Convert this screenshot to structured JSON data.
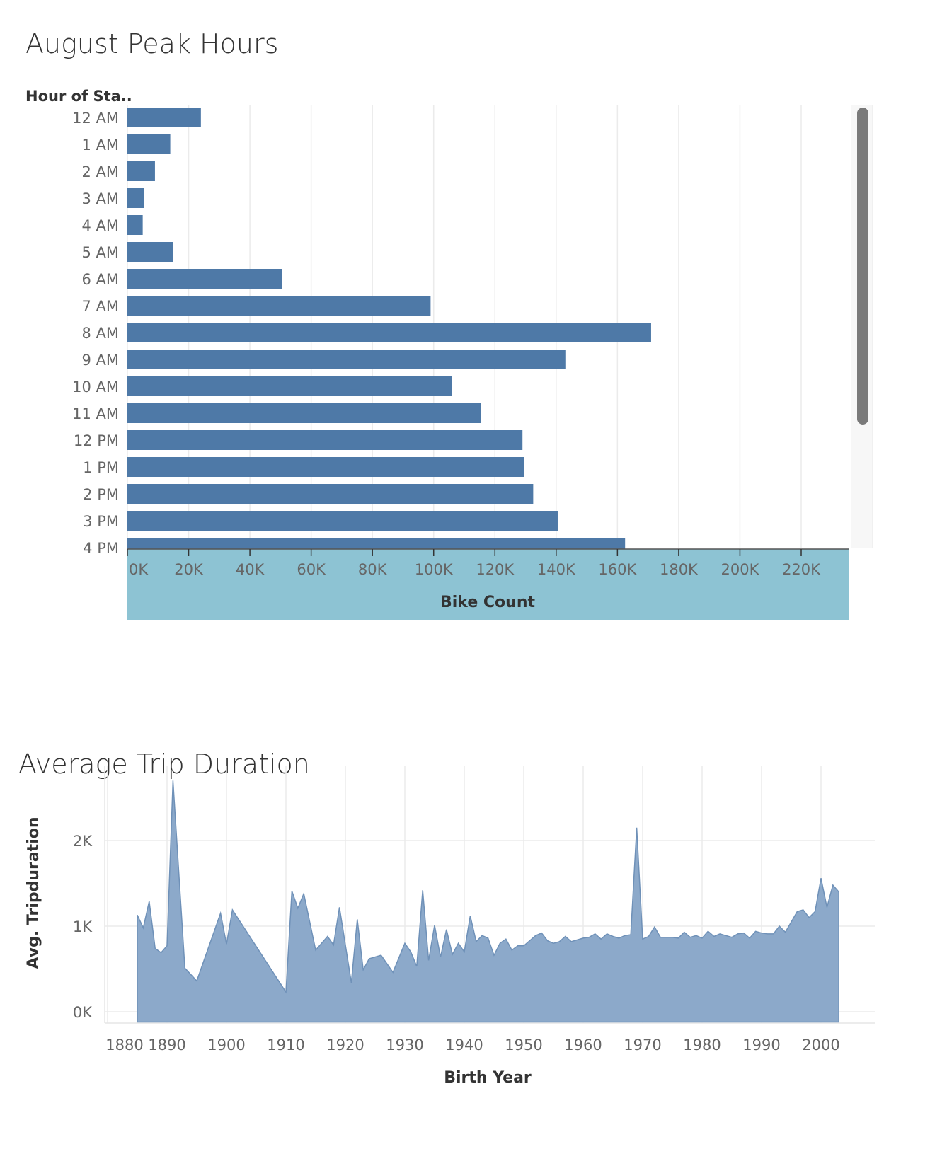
{
  "colors": {
    "bar": "#4e79a7",
    "area_fill": "#8ca9ca",
    "area_line": "#6f91b8",
    "axis_band": "#8dc3d3",
    "grid": "#ebebeb",
    "scrollbar": "#7a7a7a"
  },
  "chart_data": [
    {
      "type": "bar",
      "orientation": "horizontal",
      "title": "August Peak Hours",
      "row_header": "Hour of Sta..",
      "xlabel": "Bike Count",
      "xlim": [
        0,
        235000
      ],
      "x_ticks": [
        "0K",
        "20K",
        "40K",
        "60K",
        "80K",
        "100K",
        "120K",
        "140K",
        "160K",
        "180K",
        "200K",
        "220K"
      ],
      "categories": [
        "12 AM",
        "1 AM",
        "2 AM",
        "3 AM",
        "4 AM",
        "5 AM",
        "6 AM",
        "7 AM",
        "8 AM",
        "9 AM",
        "10 AM",
        "11 AM",
        "12 PM",
        "1 PM",
        "2 PM",
        "3 PM",
        "4 PM"
      ],
      "values": [
        24000,
        14000,
        9000,
        5500,
        5000,
        15000,
        50500,
        99000,
        171000,
        143000,
        106000,
        115500,
        129000,
        129500,
        132500,
        140500,
        162500
      ],
      "grid": true,
      "scrollbar": true
    },
    {
      "type": "area",
      "title": "Average Trip Duration",
      "xlabel": "Birth Year",
      "ylabel": "Avg. Tripduration",
      "xlim": [
        1879,
        2009
      ],
      "ylim": [
        0,
        2800
      ],
      "x_ticks": [
        "1880",
        "1890",
        "1900",
        "1910",
        "1920",
        "1930",
        "1940",
        "1950",
        "1960",
        "1970",
        "1980",
        "1990",
        "2000"
      ],
      "y_ticks": [
        "0K",
        "1K",
        "2K"
      ],
      "grid": true,
      "x": [
        1885,
        1886,
        1887,
        1888,
        1889,
        1890,
        1891,
        1893,
        1895,
        1899,
        1900,
        1901,
        1910,
        1911,
        1912,
        1913,
        1915,
        1917,
        1918,
        1919,
        1921,
        1922,
        1923,
        1924,
        1926,
        1928,
        1930,
        1931,
        1932,
        1933,
        1934,
        1935,
        1936,
        1937,
        1938,
        1939,
        1940,
        1941,
        1942,
        1943,
        1944,
        1945,
        1946,
        1947,
        1948,
        1949,
        1950,
        1951,
        1952,
        1953,
        1954,
        1955,
        1956,
        1957,
        1958,
        1959,
        1960,
        1961,
        1962,
        1963,
        1964,
        1965,
        1966,
        1967,
        1968,
        1969,
        1970,
        1971,
        1972,
        1973,
        1974,
        1975,
        1976,
        1977,
        1978,
        1979,
        1980,
        1981,
        1982,
        1983,
        1984,
        1985,
        1986,
        1987,
        1988,
        1989,
        1990,
        1991,
        1992,
        1993,
        1994,
        1995,
        1996,
        1997,
        1998,
        1999,
        2000,
        2001,
        2002,
        2003
      ],
      "values": [
        1130,
        980,
        1290,
        740,
        690,
        770,
        2700,
        510,
        360,
        1150,
        790,
        1190,
        230,
        1410,
        1210,
        1380,
        720,
        880,
        780,
        1220,
        340,
        1080,
        490,
        620,
        660,
        460,
        800,
        700,
        530,
        1420,
        600,
        1010,
        640,
        960,
        670,
        800,
        700,
        1120,
        820,
        890,
        860,
        660,
        800,
        850,
        720,
        770,
        770,
        830,
        890,
        920,
        830,
        800,
        820,
        880,
        820,
        840,
        860,
        870,
        910,
        850,
        910,
        880,
        860,
        890,
        900,
        2150,
        850,
        880,
        990,
        870,
        870,
        870,
        860,
        930,
        870,
        890,
        860,
        940,
        880,
        910,
        890,
        870,
        910,
        920,
        860,
        940,
        920,
        910,
        910,
        1000,
        930,
        1050,
        1170,
        1190,
        1100,
        1170,
        1560,
        1220,
        1480,
        1400
      ]
    }
  ]
}
